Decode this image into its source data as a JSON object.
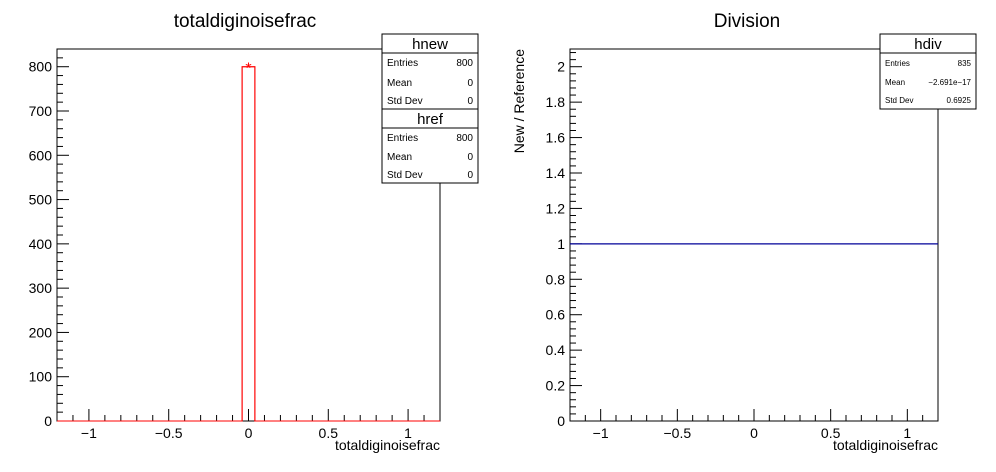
{
  "chart_data": [
    {
      "type": "histogram",
      "title": "totaldiginoisefrac",
      "xlabel": "totaldiginoisefrac",
      "ylabel": "",
      "xlim": [
        -1.2,
        1.2
      ],
      "ylim": [
        0,
        840
      ],
      "xticks": [
        -1,
        -0.5,
        0,
        0.5,
        1
      ],
      "xtick_labels": [
        "−1",
        "−0.5",
        "0",
        "0.5",
        "1"
      ],
      "yticks": [
        0,
        100,
        200,
        300,
        400,
        500,
        600,
        700,
        800
      ],
      "ytick_labels": [
        "0",
        "100",
        "200",
        "300",
        "400",
        "500",
        "600",
        "700",
        "800"
      ],
      "series": [
        {
          "name": "hnew",
          "color": "#ff0000",
          "bins": [
            {
              "x0": -0.04,
              "x1": 0.04,
              "y": 800
            }
          ],
          "marker": {
            "x": 0,
            "y": 800,
            "symbol": "*"
          }
        },
        {
          "name": "href",
          "color": "#ff0000",
          "bins": [
            {
              "x0": -0.04,
              "x1": 0.04,
              "y": 800
            }
          ]
        }
      ],
      "stats": [
        {
          "name": "hnew",
          "rows": [
            {
              "label": "Entries",
              "value": "800"
            },
            {
              "label": "Mean",
              "value": "0"
            },
            {
              "label": "Std Dev",
              "value": "0"
            }
          ]
        },
        {
          "name": "href",
          "rows": [
            {
              "label": "Entries",
              "value": "800"
            },
            {
              "label": "Mean",
              "value": "0"
            },
            {
              "label": "Std Dev",
              "value": "0"
            }
          ]
        }
      ]
    },
    {
      "type": "line",
      "title": "Division",
      "xlabel": "totaldiginoisefrac",
      "ylabel": "New / Reference",
      "xlim": [
        -1.2,
        1.2
      ],
      "ylim": [
        0,
        2.1
      ],
      "xticks": [
        -1,
        -0.5,
        0,
        0.5,
        1
      ],
      "xtick_labels": [
        "−1",
        "−0.5",
        "0",
        "0.5",
        "1"
      ],
      "yticks": [
        0,
        0.2,
        0.4,
        0.6,
        0.8,
        1,
        1.2,
        1.4,
        1.6,
        1.8,
        2
      ],
      "ytick_labels": [
        "0",
        "0.2",
        "0.4",
        "0.6",
        "0.8",
        "1",
        "1.2",
        "1.4",
        "1.6",
        "1.8",
        "2"
      ],
      "series": [
        {
          "name": "hdiv",
          "color": "#000099",
          "x": [
            -1.2,
            1.2
          ],
          "y": [
            1,
            1
          ]
        }
      ],
      "stats": [
        {
          "name": "hdiv",
          "rows": [
            {
              "label": "Entries",
              "value": "835"
            },
            {
              "label": "Mean",
              "value": "−2.691e−17"
            },
            {
              "label": "Std Dev",
              "value": "0.6925"
            }
          ]
        }
      ]
    }
  ]
}
